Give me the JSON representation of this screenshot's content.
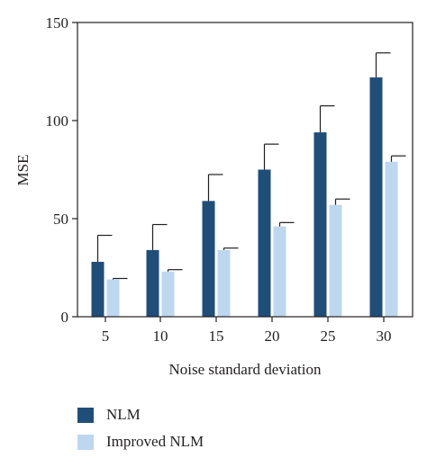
{
  "chart_data": {
    "type": "bar",
    "xlabel": "Noise standard deviation",
    "ylabel": "MSE",
    "ylim": [
      0,
      150
    ],
    "yticks": [
      "0",
      "50",
      "100",
      "150"
    ],
    "categories": [
      "5",
      "10",
      "15",
      "20",
      "25",
      "30"
    ],
    "series": [
      {
        "name": "NLM",
        "color": "#1f4e79",
        "values": [
          28,
          34,
          59,
          75,
          94,
          122
        ],
        "error_upper": [
          41.5,
          47,
          72.5,
          88,
          107.5,
          134.5
        ]
      },
      {
        "name": "Improved NLM",
        "color": "#bdd7ee",
        "values": [
          19,
          23,
          34,
          46,
          57,
          79
        ],
        "error_upper": [
          19.5,
          24,
          35,
          48,
          60,
          82
        ]
      }
    ],
    "legend_position": "bottom-left",
    "grid": false
  }
}
